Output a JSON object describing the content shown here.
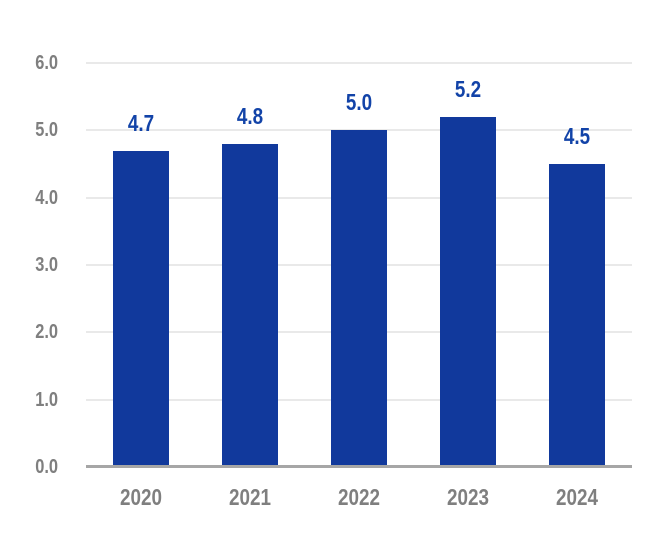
{
  "chart_data": {
    "type": "bar",
    "title": "",
    "categories": [
      "2020",
      "2021",
      "2022",
      "2023",
      "2024"
    ],
    "values": [
      4.7,
      4.8,
      5.0,
      5.2,
      4.5
    ],
    "value_labels": [
      "4.7",
      "4.8",
      "5.0",
      "5.2",
      "4.5"
    ],
    "xlabel": "",
    "ylabel": "",
    "ylim": [
      0,
      6
    ],
    "ytick_interval": 1.0,
    "ytick_labels": [
      "0.0",
      "1.0",
      "2.0",
      "3.0",
      "4.0",
      "5.0",
      "6.0"
    ],
    "grid": "horizontal",
    "legend": "none",
    "colors": {
      "bar": "#11399c",
      "value_label": "#1243a8",
      "axis_label": "#7f7f7f",
      "gridline": "#e9e9e9",
      "baseline": "#a6a6a6",
      "background": "#ffffff"
    }
  }
}
